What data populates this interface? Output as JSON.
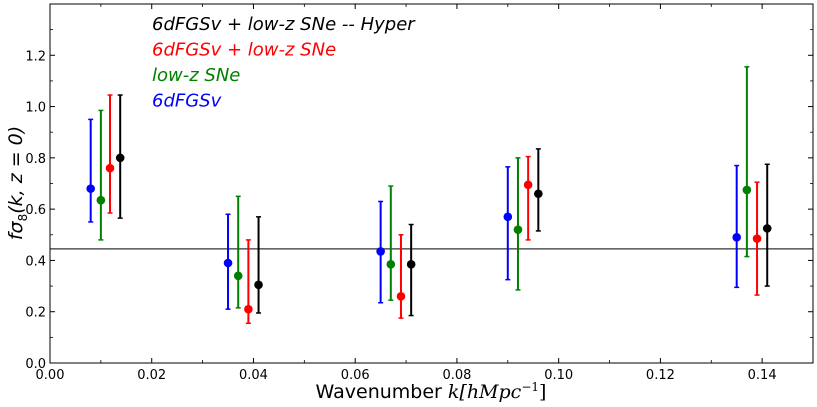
{
  "chart_data": {
    "type": "scatter",
    "xlabel_prefix": "Wavenumber ",
    "xlabel_math": "k[hMpc",
    "xlabel_sup": "−1",
    "xlabel_suffix": "]",
    "ylabel_f": "f",
    "ylabel_sigma": "σ",
    "ylabel_sub": "8",
    "ylabel_rest": "(k, z = 0)",
    "xlim": [
      0.0,
      0.15
    ],
    "ylim": [
      0.0,
      1.4
    ],
    "xticks": [
      "0.00",
      "0.02",
      "0.04",
      "0.06",
      "0.08",
      "0.10",
      "0.12",
      "0.14"
    ],
    "yticks": [
      "0.0",
      "0.2",
      "0.4",
      "0.6",
      "0.8",
      "1.0",
      "1.2"
    ],
    "reference_line": 0.445,
    "legend": {
      "placement": "top-left",
      "entries": [
        {
          "label": "6dFGSv + low-z SNe -- Hyper",
          "color": "#000000"
        },
        {
          "label": "6dFGSv + low-z SNe",
          "color": "#ff0000"
        },
        {
          "label": "low-z SNe",
          "color": "#008000"
        },
        {
          "label": "6dFGSv",
          "color": "#0000ff"
        }
      ]
    },
    "series": [
      {
        "name": "6dFGSv",
        "color": "#0000ff",
        "x": [
          0.008,
          0.035,
          0.065,
          0.09,
          0.135
        ],
        "y": [
          0.68,
          0.39,
          0.435,
          0.57,
          0.49
        ],
        "yerr_low": [
          0.55,
          0.21,
          0.235,
          0.325,
          0.295
        ],
        "yerr_high": [
          0.95,
          0.58,
          0.63,
          0.765,
          0.77
        ]
      },
      {
        "name": "low-z SNe",
        "color": "#008000",
        "x": [
          0.01,
          0.037,
          0.067,
          0.092,
          0.137
        ],
        "y": [
          0.635,
          0.34,
          0.385,
          0.52,
          0.675
        ],
        "yerr_low": [
          0.48,
          0.215,
          0.245,
          0.285,
          0.415
        ],
        "yerr_high": [
          0.985,
          0.65,
          0.69,
          0.8,
          1.155
        ]
      },
      {
        "name": "6dFGSv + low-z SNe",
        "color": "#ff0000",
        "x": [
          0.0118,
          0.039,
          0.069,
          0.094,
          0.139
        ],
        "y": [
          0.76,
          0.21,
          0.26,
          0.695,
          0.485
        ],
        "yerr_low": [
          0.585,
          0.155,
          0.175,
          0.48,
          0.265
        ],
        "yerr_high": [
          1.045,
          0.48,
          0.5,
          0.805,
          0.705
        ]
      },
      {
        "name": "6dFGSv + low-z SNe -- Hyper",
        "color": "#000000",
        "x": [
          0.0138,
          0.041,
          0.071,
          0.096,
          0.141
        ],
        "y": [
          0.8,
          0.305,
          0.385,
          0.66,
          0.525
        ],
        "yerr_low": [
          0.565,
          0.195,
          0.185,
          0.515,
          0.3
        ],
        "yerr_high": [
          1.045,
          0.57,
          0.54,
          0.835,
          0.775
        ]
      }
    ]
  }
}
